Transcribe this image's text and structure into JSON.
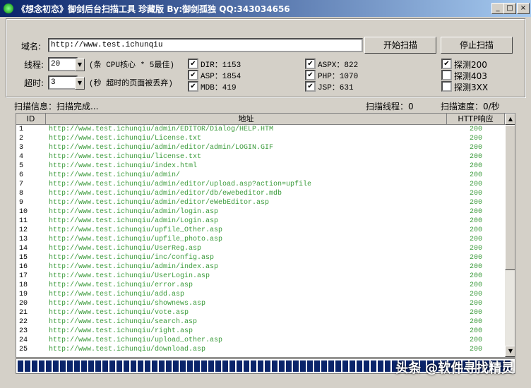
{
  "window": {
    "title": "《想念初恋》御剑后台扫描工具 珍藏版 By:御剑孤独 QQ:343034656"
  },
  "form": {
    "domain_label": "域名:",
    "domain_value": "http://www.test.ichunqiu",
    "start_button": "开始扫描",
    "stop_button": "停止扫描",
    "threads_label": "线程:",
    "threads_value": "20",
    "threads_hint": "(条 CPU核心 * 5最佳)",
    "timeout_label": "超时:",
    "timeout_value": "3",
    "timeout_hint": "(秒 超时的页面被丢弃)",
    "options": [
      [
        {
          "label": "DIR：1153",
          "checked": true
        },
        {
          "label": "ASP：1854",
          "checked": true
        },
        {
          "label": "MDB：419",
          "checked": true
        }
      ],
      [
        {
          "label": "ASPX：822",
          "checked": true
        },
        {
          "label": "PHP：1070",
          "checked": true
        },
        {
          "label": "JSP：631",
          "checked": true
        }
      ],
      [
        {
          "label": "探测200",
          "checked": true
        },
        {
          "label": "探测403",
          "checked": false
        },
        {
          "label": "探测3XX",
          "checked": false
        }
      ]
    ]
  },
  "status": {
    "info": "扫描信息：扫描完成...",
    "threads": "扫描线程：0",
    "speed": "扫描速度：0/秒"
  },
  "table": {
    "columns": [
      "ID",
      "地址",
      "HTTP响应"
    ],
    "rows": [
      [
        1,
        "http://www.test.ichunqiu/admin/EDITOR/Dialog/HELP.HTM",
        200
      ],
      [
        2,
        "http://www.test.ichunqiu/License.txt",
        200
      ],
      [
        3,
        "http://www.test.ichunqiu/admin/editor/admin/LOGIN.GIF",
        200
      ],
      [
        4,
        "http://www.test.ichunqiu/license.txt",
        200
      ],
      [
        5,
        "http://www.test.ichunqiu/index.html",
        200
      ],
      [
        6,
        "http://www.test.ichunqiu/admin/",
        200
      ],
      [
        7,
        "http://www.test.ichunqiu/admin/editor/upload.asp?action=upfile",
        200
      ],
      [
        8,
        "http://www.test.ichunqiu/admin/editor/db/ewebeditor.mdb",
        200
      ],
      [
        9,
        "http://www.test.ichunqiu/admin/editor/eWebEditor.asp",
        200
      ],
      [
        10,
        "http://www.test.ichunqiu/admin/login.asp",
        200
      ],
      [
        11,
        "http://www.test.ichunqiu/admin/Login.asp",
        200
      ],
      [
        12,
        "http://www.test.ichunqiu/upfile_Other.asp",
        200
      ],
      [
        13,
        "http://www.test.ichunqiu/upfile_photo.asp",
        200
      ],
      [
        14,
        "http://www.test.ichunqiu/UserReg.asp",
        200
      ],
      [
        15,
        "http://www.test.ichunqiu/inc/config.asp",
        200
      ],
      [
        16,
        "http://www.test.ichunqiu/admin/index.asp",
        200
      ],
      [
        17,
        "http://www.test.ichunqiu/UserLogin.asp",
        200
      ],
      [
        18,
        "http://www.test.ichunqiu/error.asp",
        200
      ],
      [
        19,
        "http://www.test.ichunqiu/add.asp",
        200
      ],
      [
        20,
        "http://www.test.ichunqiu/shownews.asp",
        200
      ],
      [
        21,
        "http://www.test.ichunqiu/vote.asp",
        200
      ],
      [
        22,
        "http://www.test.ichunqiu/search.asp",
        200
      ],
      [
        23,
        "http://www.test.ichunqiu/right.asp",
        200
      ],
      [
        24,
        "http://www.test.ichunqiu/upload_other.asp",
        200
      ],
      [
        25,
        "http://www.test.ichunqiu/download.asp",
        200
      ]
    ]
  },
  "watermark": "头条 @软件寻找精灵"
}
